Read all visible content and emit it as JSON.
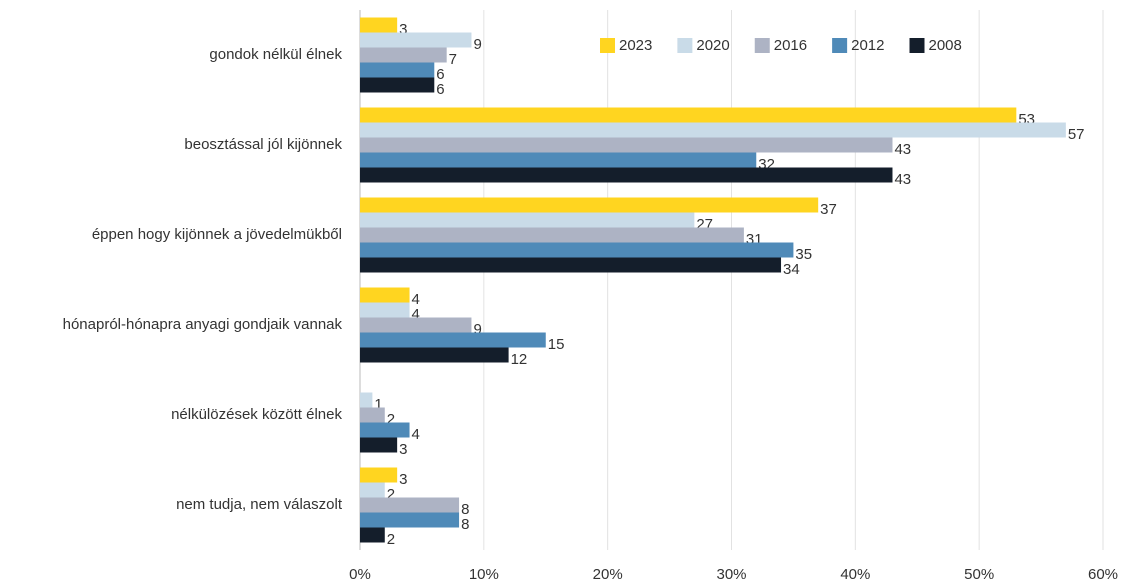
{
  "chart_data": {
    "type": "bar",
    "orientation": "horizontal",
    "categories": [
      "gondok nélkül élnek",
      "beosztással jól kijönnek",
      "éppen hogy kijönnek a jövedelmükből",
      "hónapról-hónapra anyagi gondjaik vannak",
      "nélkülözések között élnek",
      "nem tudja, nem válaszolt"
    ],
    "series": [
      {
        "name": "2023",
        "color": "#ffd520",
        "values": [
          3,
          53,
          37,
          4,
          null,
          3
        ]
      },
      {
        "name": "2020",
        "color": "#c9dbe8",
        "values": [
          9,
          57,
          27,
          4,
          1,
          2
        ]
      },
      {
        "name": "2016",
        "color": "#adb3c4",
        "values": [
          7,
          43,
          31,
          9,
          2,
          8
        ]
      },
      {
        "name": "2012",
        "color": "#4f8ab8",
        "values": [
          6,
          32,
          35,
          15,
          4,
          8
        ]
      },
      {
        "name": "2008",
        "color": "#141e2b",
        "values": [
          6,
          43,
          34,
          12,
          3,
          2
        ]
      }
    ],
    "xlim": [
      0,
      60
    ],
    "xticks": [
      {
        "value": 0,
        "label": "0%"
      },
      {
        "value": 10,
        "label": "10%"
      },
      {
        "value": 20,
        "label": "20%"
      },
      {
        "value": 30,
        "label": "30%"
      },
      {
        "value": 40,
        "label": "40%"
      },
      {
        "value": 50,
        "label": "50%"
      },
      {
        "value": 60,
        "label": "60%"
      }
    ],
    "grid": true,
    "legend": "top-right"
  }
}
